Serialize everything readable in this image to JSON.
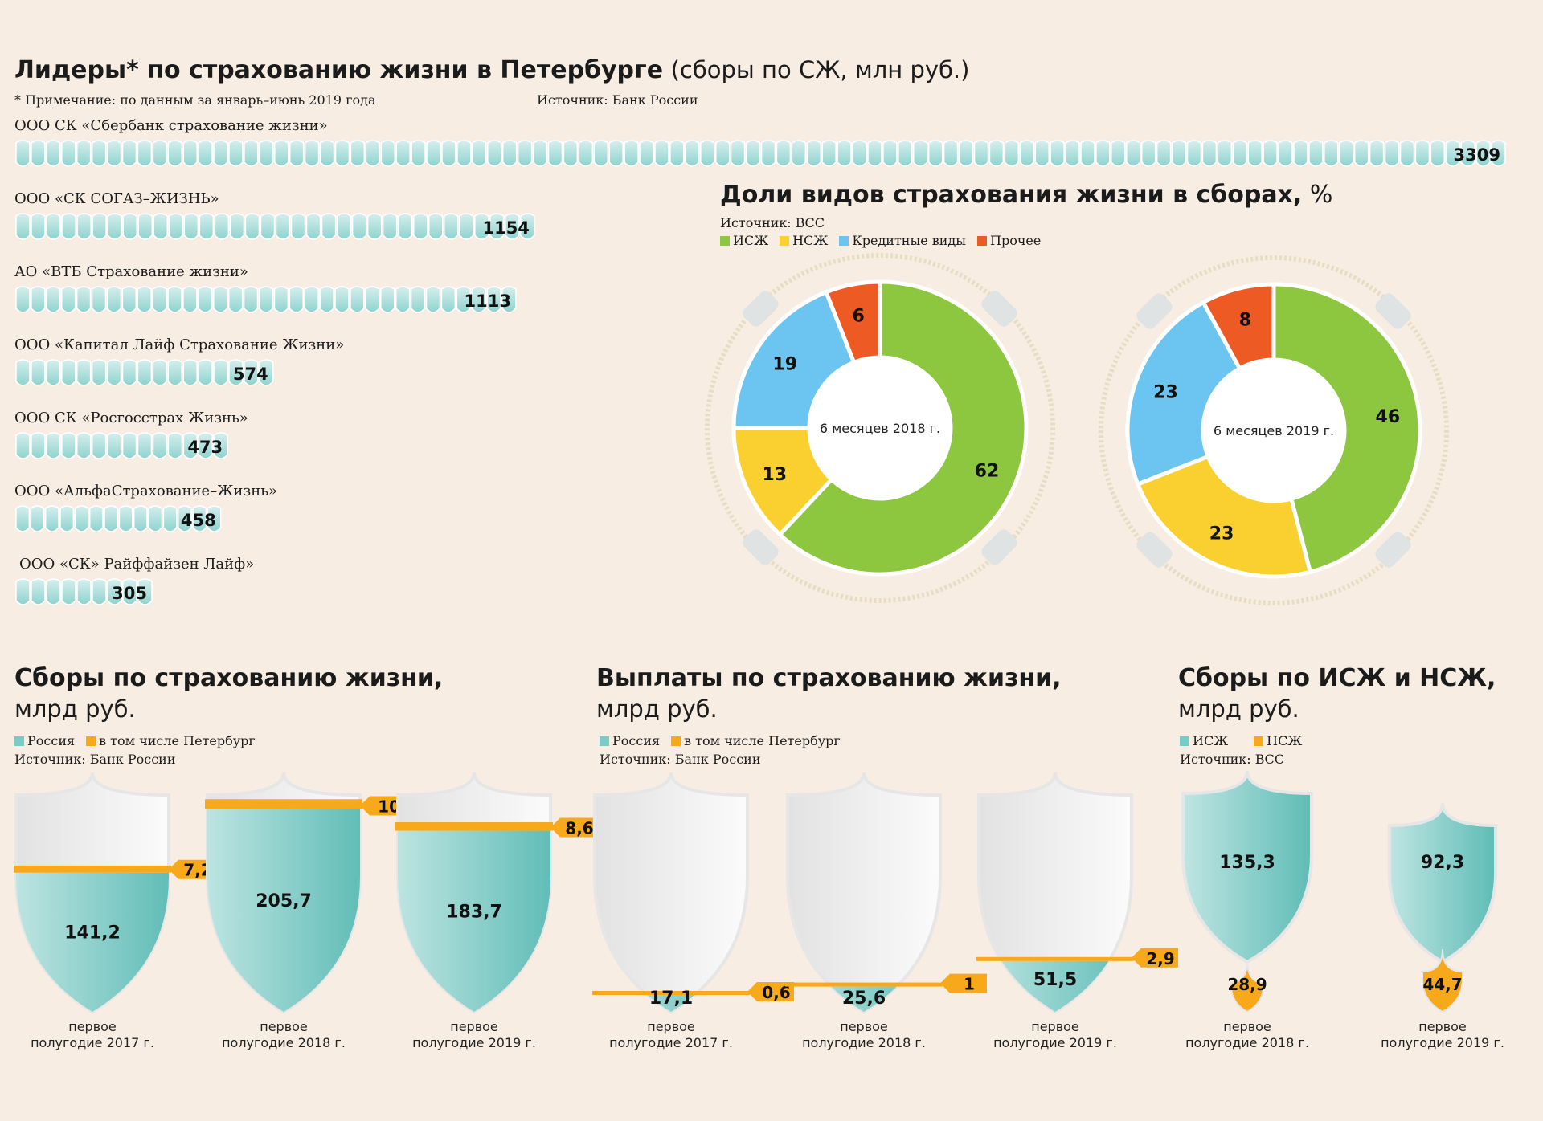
{
  "header": {
    "title_bold": "Лидеры* по страхованию жизни в Петербурге",
    "title_light": "(сборы по СЖ, млн руб.)",
    "note": "* Примечание: по данным за январь–июнь 2019 года",
    "source": "Источник: Банк России"
  },
  "leaders_labels": [
    "ООО  СК «Сбербанк страхование жизни»",
    "ООО «СК СОГАЗ–ЖИЗНЬ»",
    "АО «ВТБ Страхование жизни»",
    "ООО «Капитал Лайф Страхование Жизни»",
    "ООО СК «Росгосстрах Жизнь»",
    "ООО «АльфаСтрахование–Жизнь»",
    "ООО «СК» Райффайзен Лайф»"
  ],
  "shares": {
    "title_bold": "Доли видов страхования жизни в сборах,",
    "title_light": "%",
    "source": "Источник: ВСС"
  },
  "section_fees": {
    "title": "Сборы по страхованию жизни,",
    "subtitle": "млрд руб.",
    "legend": [
      "Россия",
      "в том числе Петербург"
    ],
    "source": "Источник: Банк России"
  },
  "section_payouts": {
    "title": "Выплаты по страхованию жизни,",
    "subtitle": "млрд руб.",
    "legend": [
      "Россия",
      "в том числе Петербург"
    ],
    "source": "Источник: Банк России"
  },
  "section_isj": {
    "title": "Сборы по ИСЖ и НСЖ,",
    "subtitle": "млрд руб.",
    "legend": [
      "ИСЖ",
      "НСЖ"
    ],
    "source": "Источник: ВСС"
  },
  "colors": {
    "background": "#f8ede2",
    "teal": "#79cbc6",
    "teal_dark": "#5fbcb6",
    "orange": "#f7a81b",
    "green": "#8dc63f",
    "yellow": "#f9d02f",
    "blue": "#6cc4f0",
    "red": "#ee5a24",
    "shield_empty": "#ececec"
  },
  "chart_data": [
    {
      "type": "bar",
      "title": "Лидеры* по страхованию жизни в Петербурге",
      "unit": "млн руб.",
      "categories": [
        "ООО  СК «Сбербанк страхование жизни»",
        "ООО «СК СОГАЗ–ЖИЗНЬ»",
        "АО «ВТБ Страхование жизни»",
        "ООО «Капитал Лайф Страхование Жизни»",
        "ООО СК «Росгосстрах Жизнь»",
        "ООО «АльфаСтрахование–Жизнь»",
        "ООО «СК» Райффайзен Лайф»"
      ],
      "values": [
        3309,
        1154,
        1113,
        574,
        473,
        458,
        305
      ],
      "value_labels": [
        "3309",
        "1154",
        "1113",
        "574",
        "473",
        "458",
        "305"
      ]
    },
    {
      "type": "pie",
      "center_label": "6 месяцев 2018 г.",
      "categories": [
        "ИСЖ",
        "НСЖ",
        "Кредитные виды",
        "Прочее"
      ],
      "values": [
        62,
        13,
        19,
        6
      ],
      "colors": [
        "#8dc63f",
        "#f9d02f",
        "#6cc4f0",
        "#ee5a24"
      ]
    },
    {
      "type": "pie",
      "center_label": "6 месяцев 2019 г.",
      "categories": [
        "ИСЖ",
        "НСЖ",
        "Кредитные виды",
        "Прочее"
      ],
      "values": [
        46,
        23,
        23,
        8
      ],
      "colors": [
        "#8dc63f",
        "#f9d02f",
        "#6cc4f0",
        "#ee5a24"
      ]
    },
    {
      "type": "bar",
      "title": "Сборы по страхованию жизни,",
      "categories": [
        "первое полугодие 2017 г.",
        "первое полугодие 2018 г.",
        "первое полугодие 2019 г."
      ],
      "series": [
        {
          "name": "Россия",
          "values": [
            141.2,
            205.7,
            183.7
          ],
          "labels": [
            "141,2",
            "205,7",
            "183,7"
          ]
        },
        {
          "name": "в том числе Петербург",
          "values": [
            7.2,
            10,
            8.6
          ],
          "labels": [
            "7,2",
            "10",
            "8,6"
          ]
        }
      ]
    },
    {
      "type": "bar",
      "title": "Выплаты по страхованию жизни,",
      "categories": [
        "первое полугодие 2017 г.",
        "первое полугодие 2018 г.",
        "первое полугодие 2019 г."
      ],
      "series": [
        {
          "name": "Россия",
          "values": [
            17.1,
            25.6,
            51.5
          ],
          "labels": [
            "17,1",
            "25,6",
            "51,5"
          ]
        },
        {
          "name": "в том числе Петербург",
          "values": [
            0.6,
            1,
            2.9
          ],
          "labels": [
            "0,6",
            "1",
            "2,9"
          ]
        }
      ]
    },
    {
      "type": "bar",
      "title": "Сборы по ИСЖ и НСЖ,",
      "categories": [
        "первое полугодие 2018 г.",
        "первое полугодие 2019 г."
      ],
      "series": [
        {
          "name": "ИСЖ",
          "values": [
            135.3,
            92.3
          ],
          "labels": [
            "135,3",
            "92,3"
          ]
        },
        {
          "name": "НСЖ",
          "values": [
            28.9,
            44.7
          ],
          "labels": [
            "28,9",
            "44,7"
          ]
        }
      ]
    }
  ]
}
